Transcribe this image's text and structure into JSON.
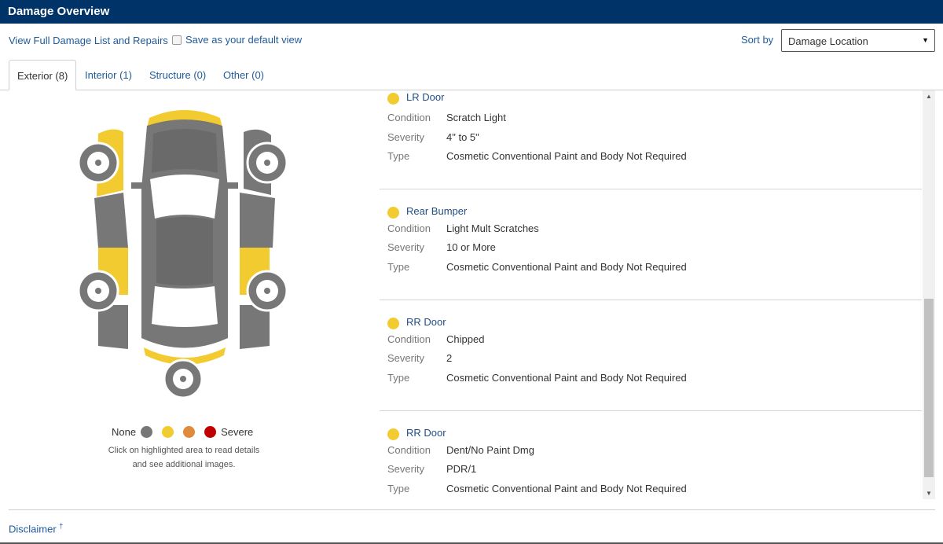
{
  "header": {
    "title": "Damage Overview"
  },
  "toolbar": {
    "full_list_link": "View Full Damage List and Repairs",
    "save_default_label": "Save as your default view",
    "sort_label": "Sort by",
    "sort_value": "Damage Location"
  },
  "tabs": [
    {
      "label": "Exterior (8)",
      "active": true
    },
    {
      "label": "Interior (1)",
      "active": false
    },
    {
      "label": "Structure (0)",
      "active": false
    },
    {
      "label": "Other (0)",
      "active": false
    }
  ],
  "legend": {
    "none_label": "None",
    "severe_label": "Severe",
    "colors": [
      "#777777",
      "#f2cb30",
      "#e08a3c",
      "#c00000"
    ],
    "hint_line1": "Click on highlighted area to read details",
    "hint_line2": "and see additional images."
  },
  "field_labels": {
    "condition": "Condition",
    "severity": "Severity",
    "type": "Type"
  },
  "damages": [
    {
      "name": "LR Door",
      "condition": "Scratch Light",
      "severity": "4\" to 5\"",
      "type": "Cosmetic Conventional Paint and Body Not Required",
      "color": "#f2cb30"
    },
    {
      "name": "Rear Bumper",
      "condition": "Light Mult Scratches",
      "severity": "10 or More",
      "type": "Cosmetic Conventional Paint and Body Not Required",
      "color": "#f2cb30"
    },
    {
      "name": "RR Door",
      "condition": "Chipped",
      "severity": "2",
      "type": "Cosmetic Conventional Paint and Body Not Required",
      "color": "#f2cb30"
    },
    {
      "name": "RR Door",
      "condition": "Dent/No Paint Dmg",
      "severity": "PDR/1",
      "type": "Cosmetic Conventional Paint and Body Not Required",
      "color": "#f2cb30"
    }
  ],
  "footer": {
    "disclaimer": "Disclaimer",
    "disclaimer_mark": "†"
  }
}
